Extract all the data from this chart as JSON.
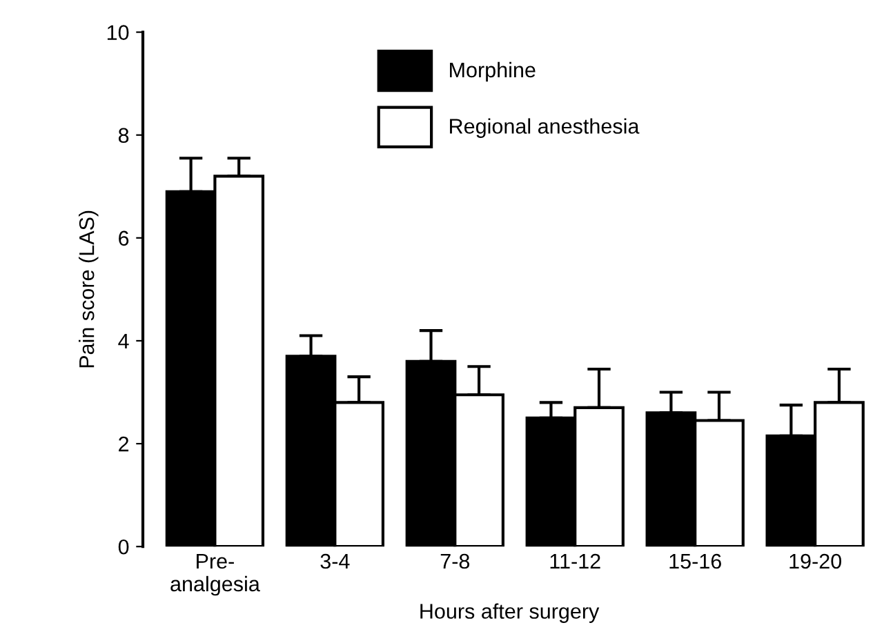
{
  "chart_data": {
    "type": "bar",
    "xlabel": "Hours after surgery",
    "ylabel": "Pain score (LAS)",
    "categories": [
      "Pre-\nanalgesia",
      "3-4",
      "7-8",
      "11-12",
      "15-16",
      "19-20"
    ],
    "series": [
      {
        "name": "Morphine",
        "color": "#000000",
        "values": [
          6.9,
          3.7,
          3.6,
          2.5,
          2.6,
          2.15
        ],
        "errors": [
          [
            6.9,
            7.55
          ],
          [
            3.7,
            4.1
          ],
          [
            3.6,
            4.2
          ],
          [
            2.5,
            2.8
          ],
          [
            2.6,
            3.0
          ],
          [
            2.15,
            2.75
          ]
        ]
      },
      {
        "name": "Regional anesthesia",
        "color": "#ffffff",
        "values": [
          7.2,
          2.8,
          2.95,
          2.7,
          2.45,
          2.8
        ],
        "errors": [
          [
            7.2,
            7.55
          ],
          [
            2.8,
            3.3
          ],
          [
            2.95,
            3.5
          ],
          [
            2.7,
            3.45
          ],
          [
            2.45,
            3.0
          ],
          [
            2.8,
            3.45
          ]
        ]
      }
    ],
    "ylim": [
      0,
      10
    ],
    "yticks": [
      0,
      2,
      4,
      6,
      8,
      10
    ],
    "grid": false,
    "legend": "top"
  }
}
